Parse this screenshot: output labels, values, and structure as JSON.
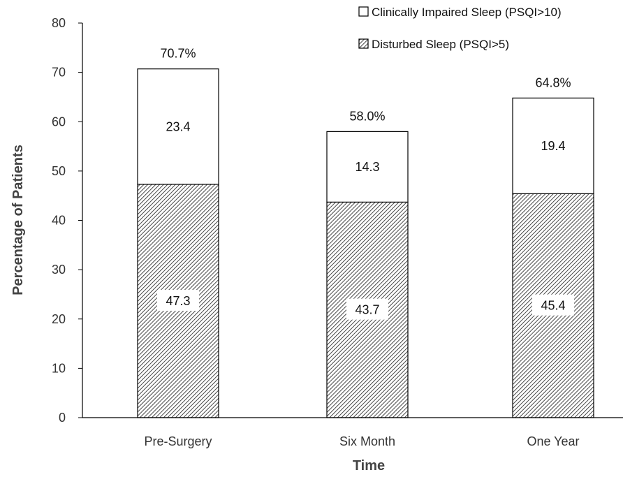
{
  "chart_data": {
    "type": "bar",
    "stacked": true,
    "title": "",
    "xlabel": "Time",
    "ylabel": "Percentage of Patients",
    "ylim": [
      0,
      80
    ],
    "yticks": [
      0,
      10,
      20,
      30,
      40,
      50,
      60,
      70,
      80
    ],
    "categories": [
      "Pre-Surgery",
      "Six Month",
      "One Year"
    ],
    "series": [
      {
        "name": "Disturbed Sleep (PSQI>5)",
        "values": [
          47.3,
          43.7,
          45.4
        ],
        "labels": [
          "47.3",
          "43.7",
          "45.4"
        ],
        "fill": "hatched"
      },
      {
        "name": "Clinically Impaired Sleep (PSQI>10)",
        "values": [
          23.4,
          14.3,
          19.4
        ],
        "labels": [
          "23.4",
          "14.3",
          "19.4"
        ],
        "fill": "white"
      }
    ],
    "totals": [
      "70.7%",
      "58.0%",
      "64.8%"
    ],
    "legend": {
      "position": "top-right",
      "items": [
        "Clinically Impaired Sleep (PSQI>10)",
        "Disturbed Sleep (PSQI>5)"
      ]
    },
    "grid": false,
    "colors": {
      "stroke": "#000000",
      "hatch": "#333333",
      "background": "#ffffff",
      "axis": "#000000"
    }
  }
}
